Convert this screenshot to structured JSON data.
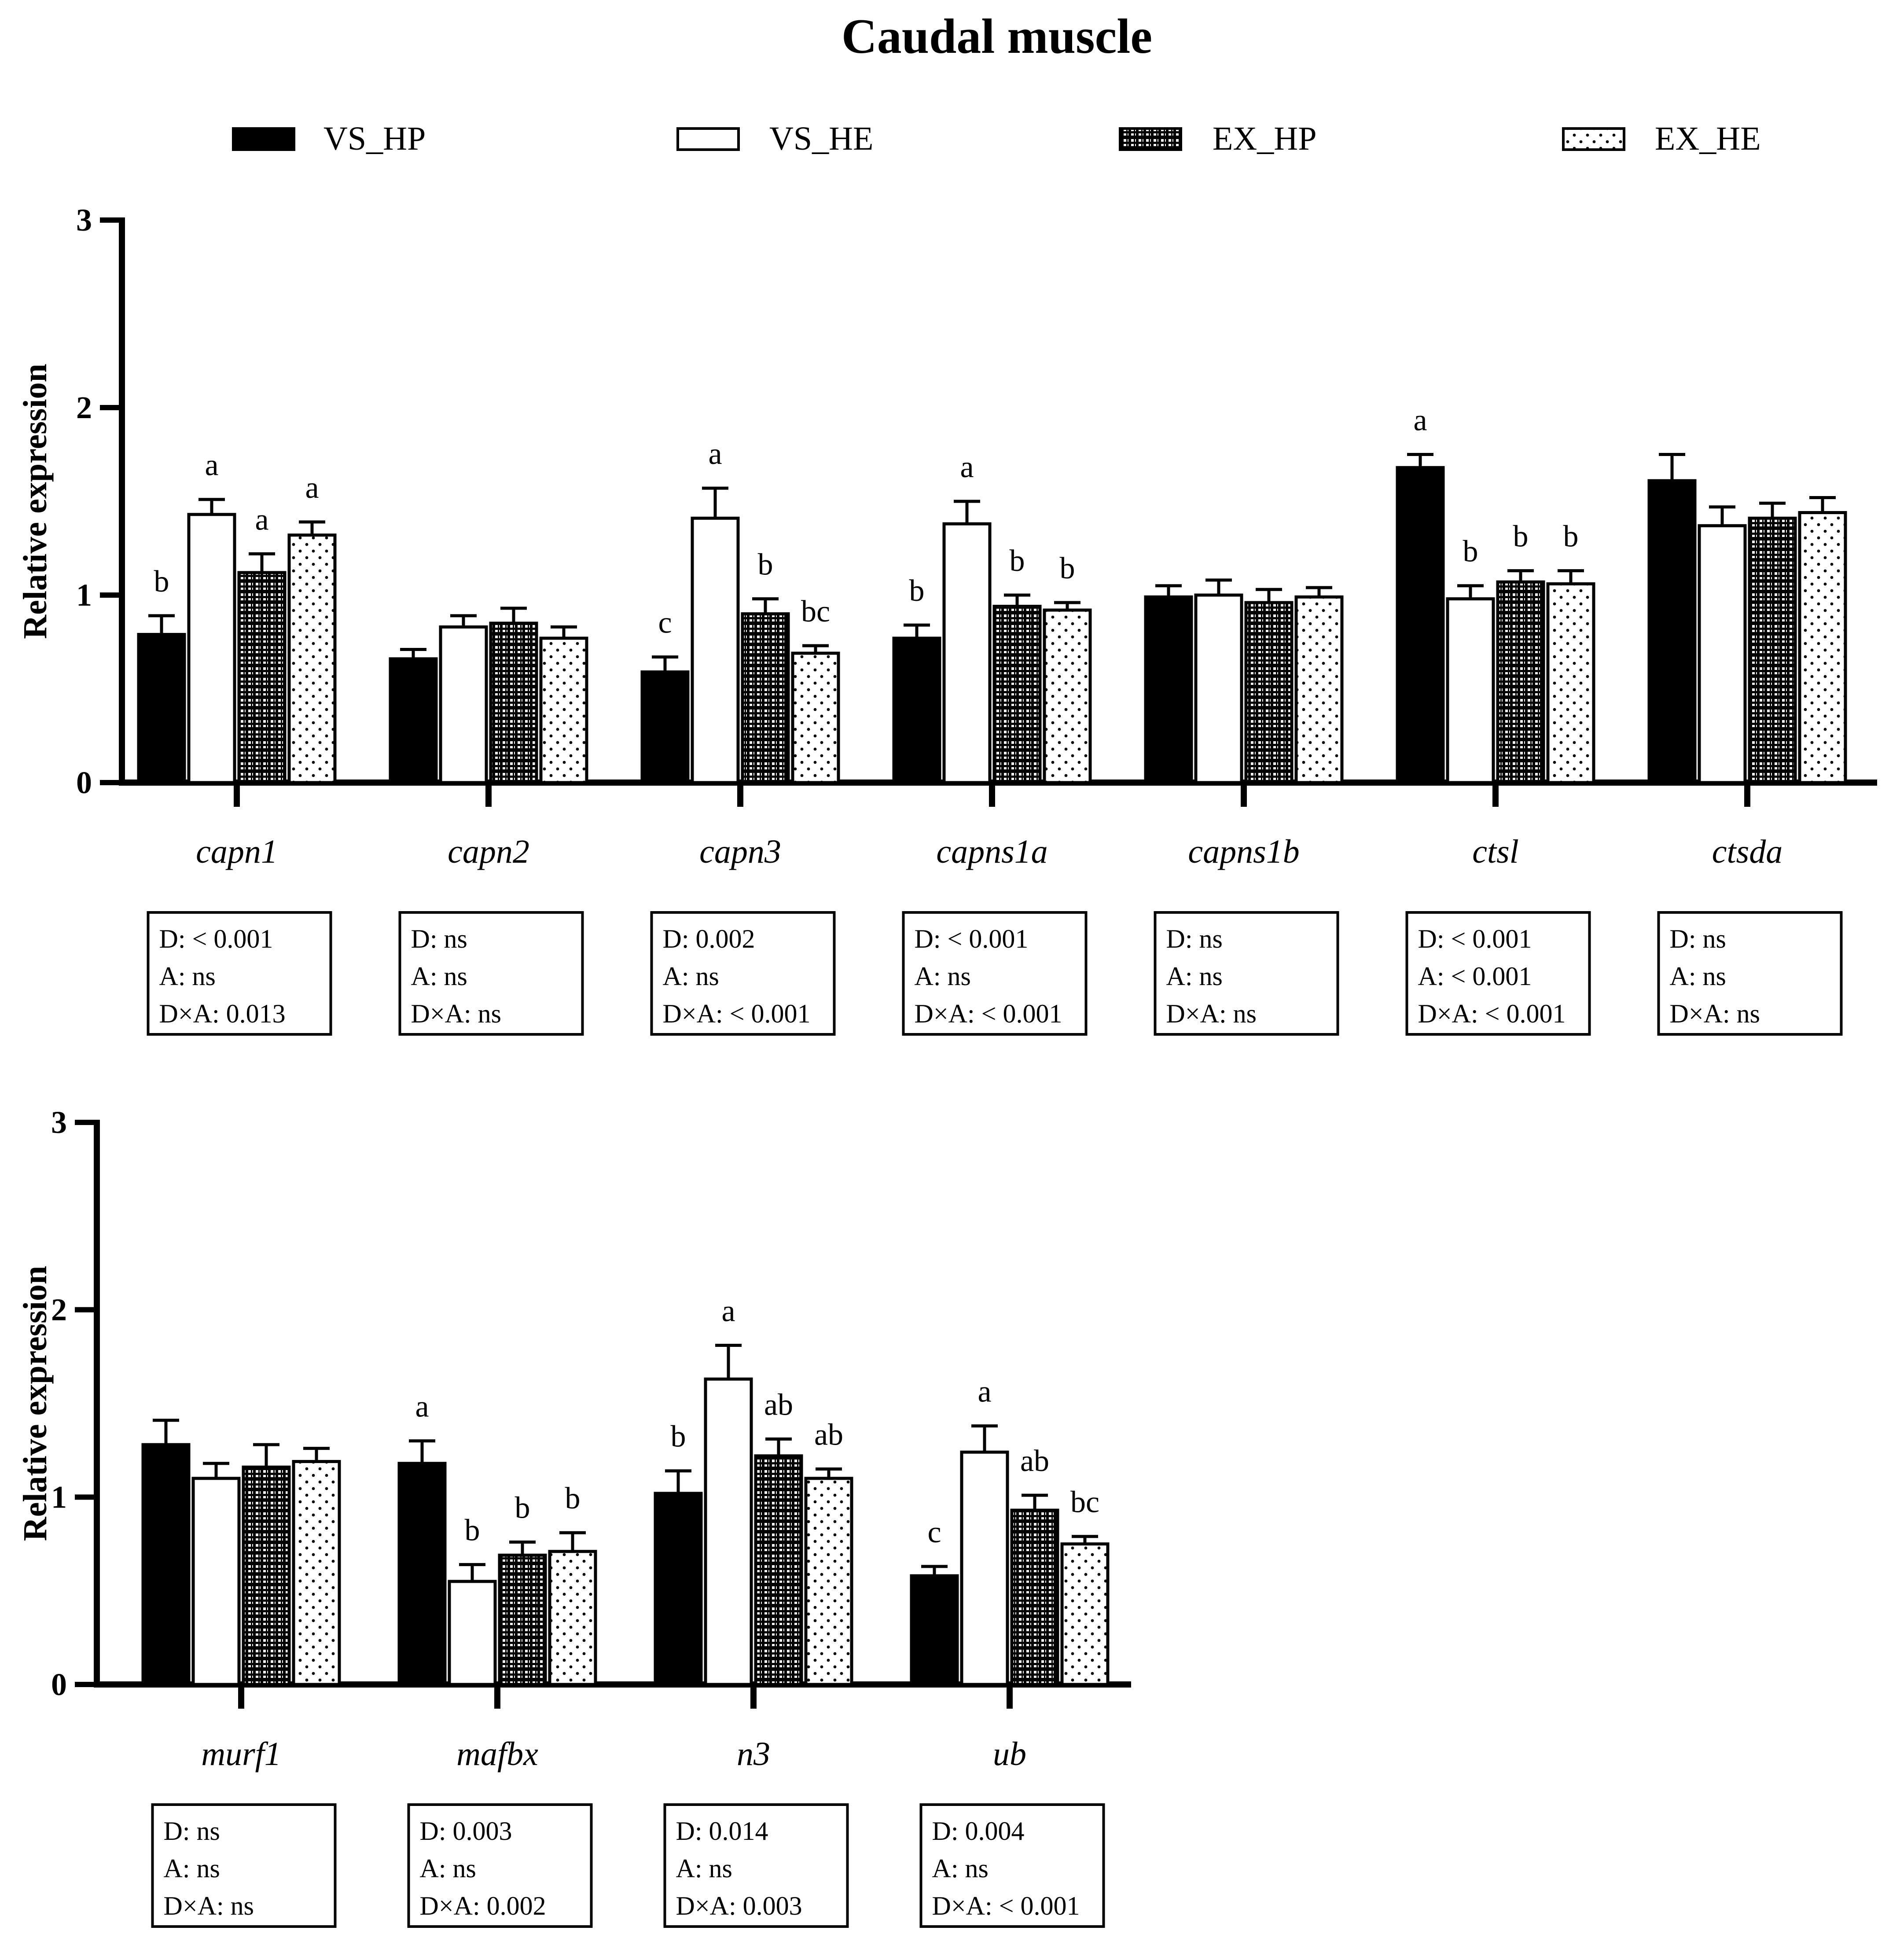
{
  "title": "Caudal muscle",
  "legend": [
    {
      "key": "VS_HP",
      "label": "VS_HP",
      "pattern": "solid"
    },
    {
      "key": "VS_HE",
      "label": "VS_HE",
      "pattern": "open"
    },
    {
      "key": "EX_HP",
      "label": "EX_HP",
      "pattern": "checker"
    },
    {
      "key": "EX_HE",
      "label": "EX_HE",
      "pattern": "dots"
    }
  ],
  "colors": {
    "ink": "#000000",
    "background": "#ffffff"
  },
  "chart_data": [
    {
      "type": "bar",
      "panel": "top",
      "ylabel": "Relative expression",
      "ylim": [
        0,
        3
      ],
      "yticks": [
        "0",
        "1",
        "2",
        "3"
      ],
      "categories": [
        "capn1",
        "capn2",
        "capn3",
        "capns1a",
        "capns1b",
        "ctsl",
        "ctsda"
      ],
      "series": [
        {
          "name": "VS_HP",
          "values": [
            0.79,
            0.66,
            0.59,
            0.77,
            0.99,
            1.68,
            1.61
          ],
          "errors": [
            0.1,
            0.05,
            0.08,
            0.07,
            0.06,
            0.07,
            0.14
          ]
        },
        {
          "name": "VS_HE",
          "values": [
            1.43,
            0.83,
            1.41,
            1.38,
            1.0,
            0.98,
            1.37
          ],
          "errors": [
            0.08,
            0.06,
            0.16,
            0.12,
            0.08,
            0.07,
            0.1
          ]
        },
        {
          "name": "EX_HP",
          "values": [
            1.12,
            0.85,
            0.9,
            0.94,
            0.96,
            1.07,
            1.41
          ],
          "errors": [
            0.1,
            0.08,
            0.08,
            0.06,
            0.07,
            0.06,
            0.08
          ]
        },
        {
          "name": "EX_HE",
          "values": [
            1.32,
            0.77,
            0.69,
            0.92,
            0.99,
            1.06,
            1.44
          ],
          "errors": [
            0.07,
            0.06,
            0.04,
            0.04,
            0.05,
            0.07,
            0.08
          ]
        }
      ],
      "letters": [
        [
          "b",
          "a",
          "a",
          "a"
        ],
        [
          "",
          "",
          "",
          ""
        ],
        [
          "c",
          "a",
          "b",
          "bc"
        ],
        [
          "b",
          "a",
          "b",
          "b"
        ],
        [
          "",
          "",
          "",
          ""
        ],
        [
          "a",
          "b",
          "b",
          "b"
        ],
        [
          "",
          "",
          "",
          ""
        ]
      ],
      "stats": [
        [
          "D: < 0.001",
          "A: ns",
          "D×A: 0.013"
        ],
        [
          "D: ns",
          "A: ns",
          "D×A: ns"
        ],
        [
          "D: 0.002",
          "A: ns",
          "D×A: < 0.001"
        ],
        [
          "D: < 0.001",
          "A: ns",
          "D×A: < 0.001"
        ],
        [
          "D: ns",
          "A: ns",
          "D×A: ns"
        ],
        [
          "D: < 0.001",
          "A: < 0.001",
          "D×A: < 0.001"
        ],
        [
          "D: ns",
          "A: ns",
          "D×A: ns"
        ]
      ]
    },
    {
      "type": "bar",
      "panel": "bottom",
      "ylabel": "Relative expression",
      "ylim": [
        0,
        3
      ],
      "yticks": [
        "0",
        "1",
        "2",
        "3"
      ],
      "categories": [
        "murf1",
        "mafbx",
        "n3",
        "ub"
      ],
      "series": [
        {
          "name": "VS_HP",
          "values": [
            1.28,
            1.18,
            1.02,
            0.58
          ],
          "errors": [
            0.13,
            0.12,
            0.12,
            0.05
          ]
        },
        {
          "name": "VS_HE",
          "values": [
            1.1,
            0.55,
            1.63,
            1.24
          ],
          "errors": [
            0.08,
            0.09,
            0.18,
            0.14
          ]
        },
        {
          "name": "EX_HP",
          "values": [
            1.16,
            0.69,
            1.22,
            0.93
          ],
          "errors": [
            0.12,
            0.07,
            0.09,
            0.08
          ]
        },
        {
          "name": "EX_HE",
          "values": [
            1.19,
            0.71,
            1.1,
            0.75
          ],
          "errors": [
            0.07,
            0.1,
            0.05,
            0.04
          ]
        }
      ],
      "letters": [
        [
          "",
          "",
          "",
          ""
        ],
        [
          "a",
          "b",
          "b",
          "b"
        ],
        [
          "b",
          "a",
          "ab",
          "ab"
        ],
        [
          "c",
          "a",
          "ab",
          "bc"
        ]
      ],
      "stats": [
        [
          "D: ns",
          "A: ns",
          "D×A: ns"
        ],
        [
          "D: 0.003",
          "A: ns",
          "D×A: 0.002"
        ],
        [
          "D: 0.014",
          "A: ns",
          "D×A: 0.003"
        ],
        [
          "D: 0.004",
          "A: ns",
          "D×A: < 0.001"
        ]
      ]
    }
  ]
}
